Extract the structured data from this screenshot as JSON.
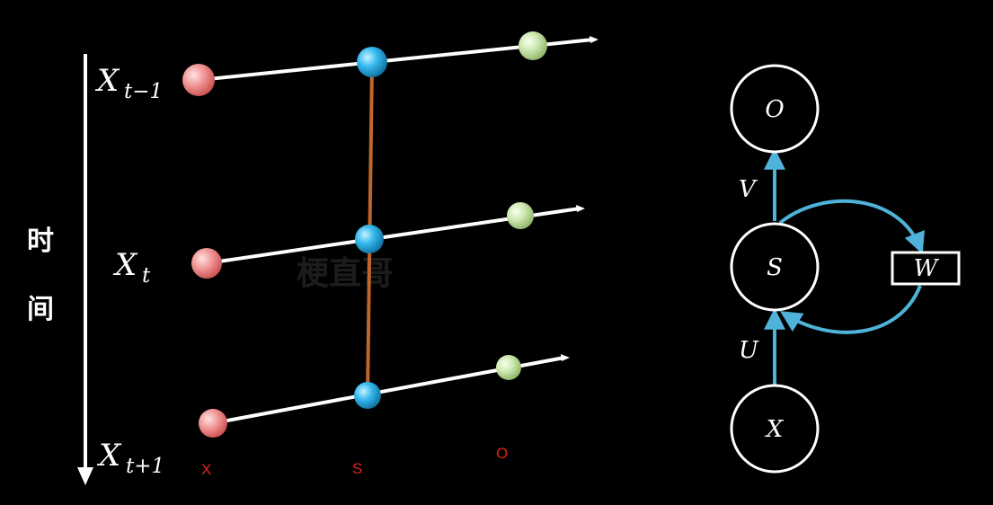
{
  "unrolled": {
    "time_axis_label": [
      "时",
      "间"
    ],
    "rows": [
      {
        "label_base": "X",
        "label_sub": "t−1"
      },
      {
        "label_base": "X",
        "label_sub": "t"
      },
      {
        "label_base": "X",
        "label_sub": "t+1"
      }
    ],
    "column_labels": {
      "x": "X",
      "s": "S",
      "o": "O"
    },
    "watermark": "梗直哥",
    "colors": {
      "input_node": "#f08a8a",
      "state_node": "#2fb5ea",
      "output_node": "#c8e6a8",
      "recurrent_link": "#c0662a",
      "line": "#ffffff",
      "column_label": "#e0241b"
    }
  },
  "folded": {
    "nodes": {
      "output": "O",
      "state": "S",
      "input": "X",
      "weight_box": "W"
    },
    "edges": {
      "input_to_state": "U",
      "state_to_output": "V"
    },
    "colors": {
      "arrow": "#4fb3d9",
      "node_stroke": "#ffffff"
    }
  }
}
